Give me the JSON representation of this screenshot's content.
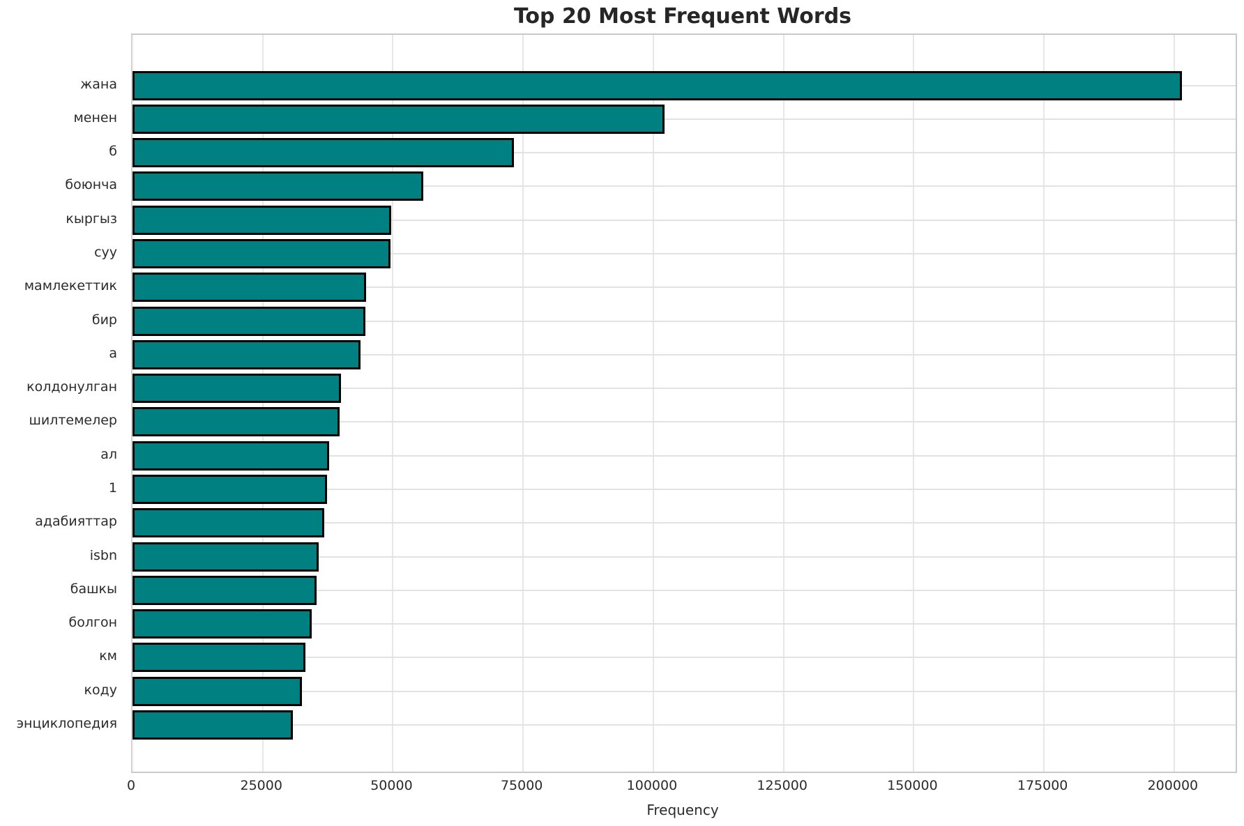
{
  "title": "Top 20 Most Frequent Words",
  "chart_data": {
    "type": "bar",
    "orientation": "horizontal",
    "title": "Top 20 Most Frequent Words",
    "xlabel": "Frequency",
    "ylabel": "",
    "categories": [
      "жана",
      "менен",
      "б",
      "боюнча",
      "кыргыз",
      "суу",
      "мамлекеттик",
      "бир",
      "а",
      "колдонулган",
      "шилтемелер",
      "ал",
      "1",
      "адабияттар",
      "isbn",
      "башкы",
      "болгон",
      "км",
      "коду",
      "энциклопедия"
    ],
    "values": [
      201500,
      102200,
      73200,
      55800,
      49700,
      49500,
      44900,
      44700,
      43800,
      40000,
      39800,
      37800,
      37400,
      36800,
      35700,
      35400,
      34400,
      33200,
      32500,
      30800
    ],
    "xlim": [
      0,
      211800
    ],
    "xticks": [
      0,
      25000,
      50000,
      75000,
      100000,
      125000,
      150000,
      175000,
      200000
    ],
    "grid": true,
    "legend": "none",
    "bar_color": "#008080",
    "bar_edge_color": "#000000"
  }
}
